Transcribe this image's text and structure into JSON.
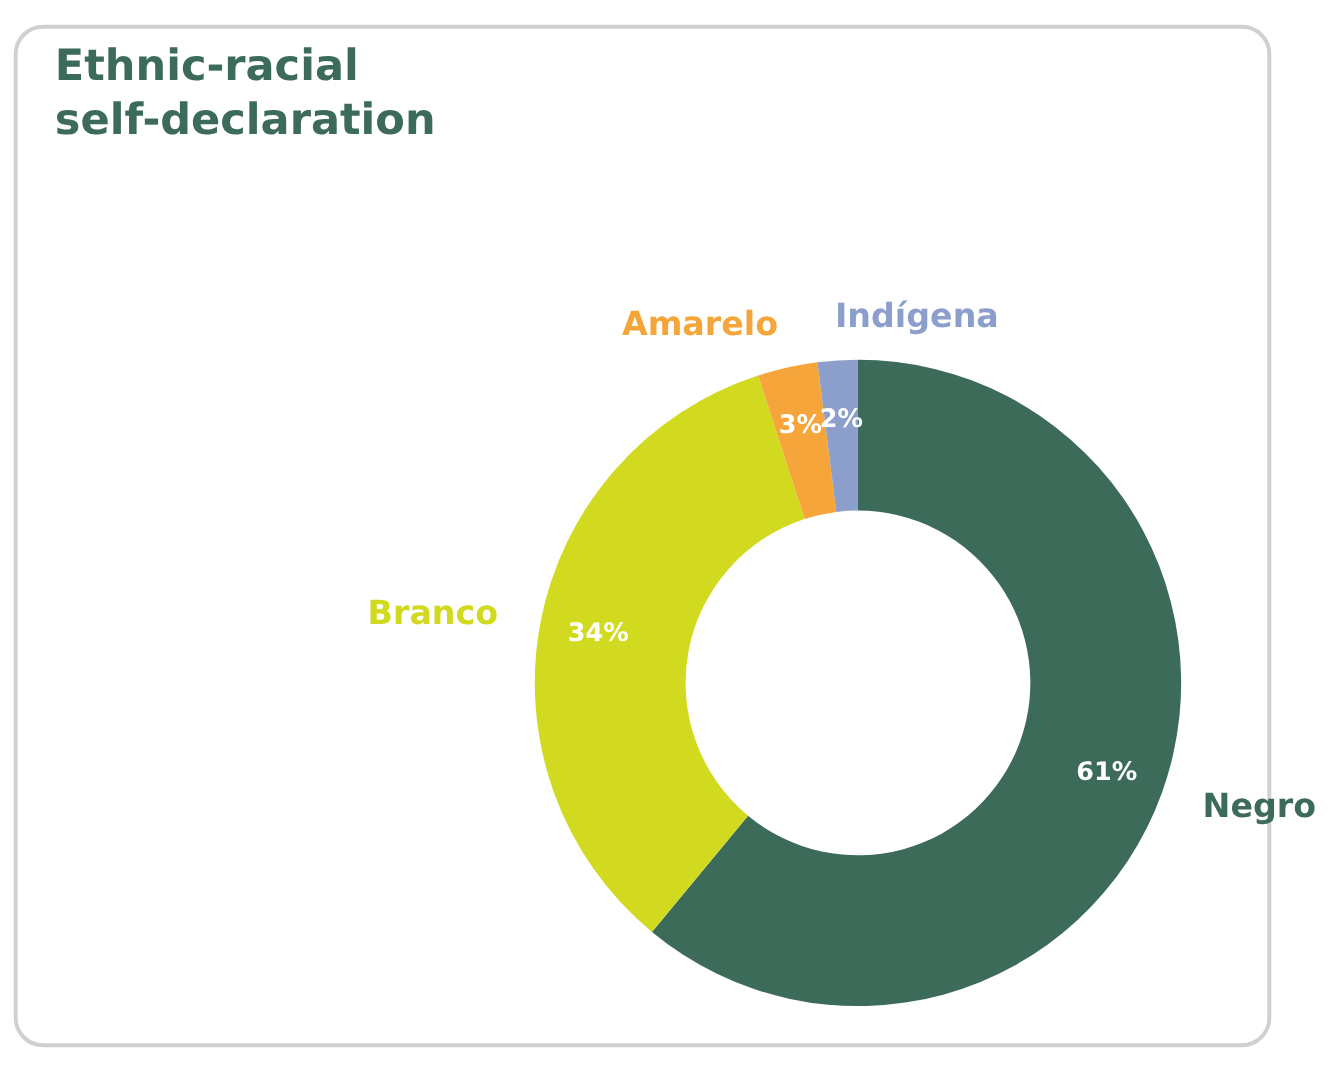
{
  "chart_data": {
    "type": "donut",
    "title": "Ethnic-racial self-declaration",
    "categories": [
      "Negro",
      "Branco",
      "Amarelo",
      "Indígena"
    ],
    "values": [
      61,
      34,
      3,
      2
    ],
    "colors": [
      "#3d6b5a",
      "#d2da1f",
      "#f5a53a",
      "#8c9fcc"
    ],
    "value_labels": [
      "61%",
      "34%",
      "3%",
      "2%"
    ],
    "legend": false
  }
}
